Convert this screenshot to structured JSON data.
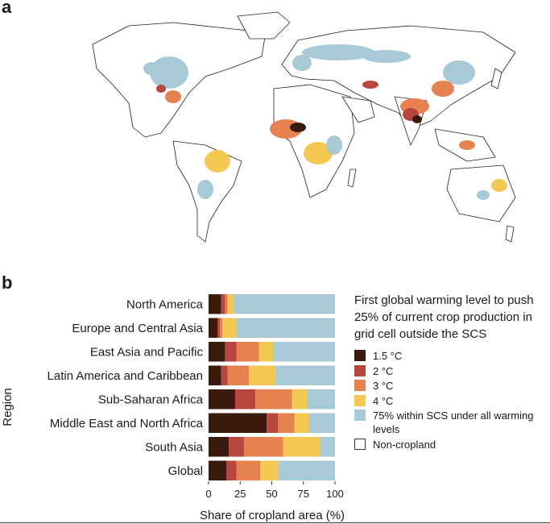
{
  "panels": {
    "a": "a",
    "b": "b"
  },
  "map": {
    "ocean_color": "#ffffff",
    "land_color": "#ffffff",
    "coast_color": "#222222",
    "category_colors": {
      "c15": "#3b1a0e",
      "c2": "#b7463e",
      "c3": "#e58250",
      "c4": "#f3c954",
      "scs": "#a8c9d6"
    }
  },
  "chart_data": {
    "type": "bar",
    "orientation": "horizontal",
    "stacked": true,
    "categories": [
      "North America",
      "Europe and Central Asia",
      "East Asia and Pacific",
      "Latin America and Caribbean",
      "Sub-Saharan Africa",
      "Middle East and North Africa",
      "South Asia",
      "Global"
    ],
    "series": [
      {
        "name": "1.5 °C",
        "color": "#3b1a0e",
        "values": [
          10,
          7,
          13,
          10,
          21,
          46,
          16,
          14
        ]
      },
      {
        "name": "2 °C",
        "color": "#b7463e",
        "values": [
          3,
          2,
          9,
          5,
          16,
          9,
          12,
          8
        ]
      },
      {
        "name": "3 °C",
        "color": "#e58250",
        "values": [
          2,
          2,
          18,
          17,
          29,
          13,
          31,
          19
        ]
      },
      {
        "name": "4 °C",
        "color": "#f3c954",
        "values": [
          5,
          11,
          11,
          21,
          12,
          11,
          29,
          14
        ]
      },
      {
        "name": "75% within SCS under all warming levels",
        "color": "#a8c9d6",
        "values": [
          80,
          78,
          49,
          47,
          22,
          21,
          12,
          45
        ]
      }
    ],
    "xlabel": "Share of cropland area (%)",
    "ylabel": "Region",
    "xlim": [
      0,
      100
    ],
    "xticks": [
      "0",
      "25",
      "50",
      "75",
      "100"
    ]
  },
  "legend": {
    "title": "First global warming level to push 25% of current crop production in grid cell outside the SCS",
    "items": [
      {
        "label": "1.5 °C",
        "color": "#3b1a0e"
      },
      {
        "label": "2 °C",
        "color": "#b7463e"
      },
      {
        "label": "3 °C",
        "color": "#e58250"
      },
      {
        "label": "4 °C",
        "color": "#f3c954"
      },
      {
        "label": "75% within SCS under all warming levels",
        "color": "#a8c9d6"
      },
      {
        "label": "Non-cropland",
        "color": "#ffffff"
      }
    ]
  }
}
